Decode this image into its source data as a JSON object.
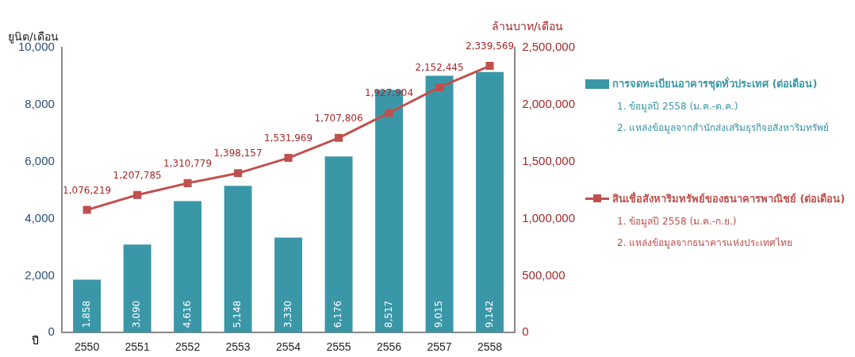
{
  "chart_data": {
    "type": "bar",
    "xlabel": "ปี",
    "ylabel": "ยูนิต/เดือน",
    "y2label": "ล้านบาท/เดือน",
    "categories": [
      "2550",
      "2551",
      "2552",
      "2553",
      "2554",
      "2555",
      "2556",
      "2557",
      "2558"
    ],
    "series": [
      {
        "name": "การจดทะเบียนอาคารชุดทั่วประเทศ (ต่อเดือน)",
        "color": "#3a97a8",
        "values": [
          1858,
          3090,
          4616,
          5148,
          3330,
          6176,
          8517,
          9015,
          9142
        ],
        "value_labels": [
          "1,858",
          "3,090",
          "4,616",
          "5,148",
          "3,330",
          "6,176",
          "8,517",
          "9,015",
          "9,142"
        ]
      },
      {
        "name": "สินเชื่อสังหาริมทรัพย์ของธนาคารพาณิชย์ (ต่อเดือน)",
        "type": "line",
        "axis": "y2",
        "color": "#c0504d",
        "marker": "square",
        "values": [
          1076219,
          1207785,
          1310779,
          1398157,
          1531969,
          1707806,
          1927904,
          2152445,
          2339569
        ],
        "value_labels": [
          "1,076,219",
          "1,207,785",
          "1,310,779",
          "1,398,157",
          "1,531,969",
          "1,707,806",
          "1,927,904",
          "2,152,445",
          "2,339,569"
        ]
      }
    ],
    "annotations": [
      "1. ข้อมูลปี 2558 (ม.ค.-ต.ค.)",
      "2. แหล่งข้อมูลจากสำนักส่งเสริมธุรกิจอสังหาริมทรัพย์",
      "1. ข้อมูลปี 2558 (ม.ค.-ก.ย.)",
      "2. แหล่งข้อมูลจากธนาคารแห่งประเทศไทย"
    ],
    "ylim": [
      0,
      10000
    ],
    "yticks": [
      0,
      {
        "value": 2000,
        "label": "2,000"
      },
      {
        "value": 4000,
        "label": "4,000"
      },
      {
        "value": 6000,
        "label": "6,000"
      },
      {
        "value": 8000,
        "label": "8,000"
      },
      {
        "value": 10000,
        "label": "10,000"
      }
    ],
    "y2lim": [
      0,
      2500000
    ],
    "y2ticks": [
      0,
      {
        "value": 500000,
        "label": "500,000"
      },
      {
        "value": 1000000,
        "label": "1,000,000"
      },
      {
        "value": 1500000,
        "label": "1,500,000"
      },
      {
        "value": 2000000,
        "label": "2,000,000"
      },
      {
        "value": 2500000,
        "label": "2,500,000"
      }
    ],
    "grid": false,
    "legend": "right"
  }
}
